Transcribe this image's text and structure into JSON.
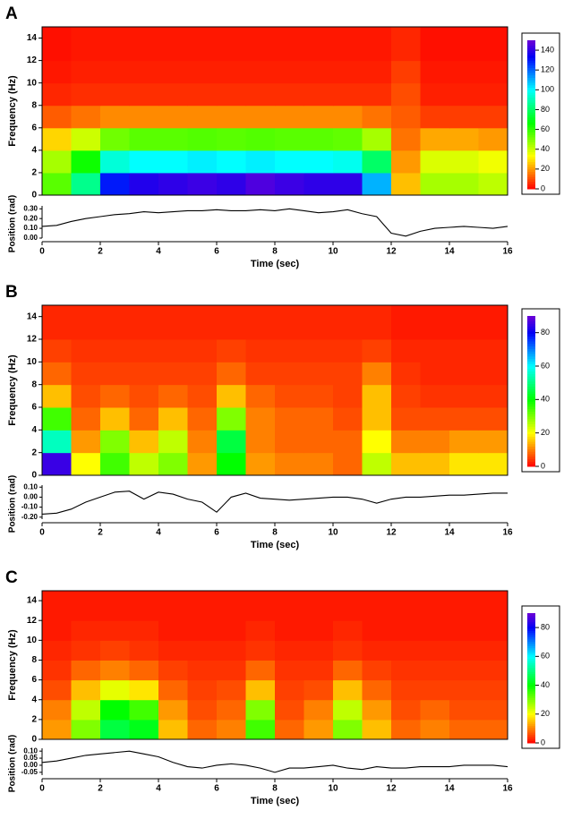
{
  "chart_data": [
    {
      "type": "heatmap",
      "label": "A",
      "ylabel": "Frequency (Hz)",
      "xbins": [
        0,
        1,
        2,
        3,
        4,
        5,
        6,
        7,
        8,
        9,
        10,
        11,
        12,
        13,
        14,
        15,
        16
      ],
      "ybins": [
        0,
        2,
        4,
        6,
        8,
        10,
        12,
        15
      ],
      "z": [
        [
          55,
          85,
          130,
          138,
          140,
          142,
          140,
          145,
          142,
          140,
          140,
          110,
          25,
          45,
          45,
          42
        ],
        [
          45,
          65,
          95,
          100,
          100,
          102,
          100,
          102,
          100,
          100,
          98,
          80,
          20,
          38,
          38,
          35
        ],
        [
          28,
          40,
          52,
          55,
          55,
          56,
          55,
          56,
          55,
          55,
          54,
          45,
          15,
          22,
          22,
          20
        ],
        [
          12,
          15,
          18,
          18,
          18,
          18,
          18,
          18,
          18,
          18,
          18,
          15,
          12,
          8,
          8,
          8
        ],
        [
          5,
          6,
          6,
          6,
          6,
          6,
          6,
          6,
          6,
          6,
          6,
          6,
          10,
          4,
          4,
          4
        ],
        [
          3,
          4,
          4,
          4,
          4,
          4,
          4,
          4,
          4,
          4,
          4,
          4,
          8,
          3,
          3,
          3
        ],
        [
          2,
          3,
          3,
          3,
          3,
          3,
          3,
          3,
          3,
          3,
          3,
          3,
          5,
          2,
          2,
          2
        ]
      ],
      "ylim": [
        0,
        15
      ],
      "yticks": [
        0,
        2,
        4,
        6,
        8,
        10,
        12,
        14
      ],
      "clim": [
        0,
        150
      ],
      "cticks": [
        0,
        20,
        40,
        60,
        80,
        100,
        120,
        140
      ]
    },
    {
      "type": "line",
      "ylabel": "Position (rad)",
      "xlabel": "Time (sec)",
      "color": "#000000",
      "x": [
        0,
        0.5,
        1,
        1.5,
        2,
        2.5,
        3,
        3.5,
        4,
        4.5,
        5,
        5.5,
        6,
        6.5,
        7,
        7.5,
        8,
        8.5,
        9,
        9.5,
        10,
        10.5,
        11,
        11.5,
        12,
        12.5,
        13,
        13.5,
        14,
        14.5,
        15,
        15.5,
        16
      ],
      "values": [
        0.12,
        0.13,
        0.17,
        0.2,
        0.22,
        0.24,
        0.25,
        0.27,
        0.26,
        0.27,
        0.28,
        0.28,
        0.29,
        0.28,
        0.28,
        0.29,
        0.28,
        0.3,
        0.28,
        0.26,
        0.27,
        0.29,
        0.25,
        0.22,
        0.05,
        0.02,
        0.07,
        0.1,
        0.11,
        0.12,
        0.11,
        0.1,
        0.12
      ],
      "xlim": [
        0,
        16
      ],
      "xticks": [
        0,
        2,
        4,
        6,
        8,
        10,
        12,
        14,
        16
      ],
      "ylim": [
        0,
        0.33
      ],
      "yticks": [
        {
          "value": 0,
          "label": "0.00"
        },
        {
          "value": 0.1,
          "label": "0.10"
        },
        {
          "value": 0.2,
          "label": "0.20"
        },
        {
          "value": 0.3,
          "label": "0.30"
        }
      ]
    },
    {
      "type": "heatmap",
      "label": "B",
      "ylabel": "Frequency (Hz)",
      "xbins": [
        0,
        1,
        2,
        3,
        4,
        5,
        6,
        7,
        8,
        9,
        10,
        11,
        12,
        13,
        14,
        15,
        16
      ],
      "ybins": [
        0,
        2,
        4,
        6,
        8,
        10,
        12,
        15
      ],
      "z": [
        [
          85,
          20,
          35,
          25,
          30,
          12,
          40,
          12,
          10,
          10,
          8,
          25,
          15,
          15,
          18,
          18
        ],
        [
          55,
          12,
          30,
          15,
          25,
          10,
          45,
          10,
          8,
          8,
          8,
          20,
          10,
          10,
          12,
          12
        ],
        [
          35,
          8,
          15,
          8,
          15,
          8,
          30,
          10,
          8,
          8,
          6,
          15,
          6,
          6,
          6,
          6
        ],
        [
          15,
          6,
          8,
          6,
          8,
          6,
          15,
          8,
          6,
          6,
          5,
          15,
          5,
          4,
          4,
          4
        ],
        [
          8,
          5,
          5,
          5,
          5,
          5,
          8,
          5,
          5,
          5,
          5,
          10,
          4,
          3,
          3,
          3
        ],
        [
          5,
          4,
          4,
          4,
          4,
          4,
          5,
          4,
          4,
          4,
          4,
          5,
          3,
          3,
          3,
          3
        ],
        [
          3,
          3,
          3,
          3,
          3,
          3,
          3,
          3,
          3,
          3,
          3,
          3,
          2,
          2,
          2,
          2
        ]
      ],
      "ylim": [
        0,
        15
      ],
      "yticks": [
        0,
        2,
        4,
        6,
        8,
        10,
        12,
        14
      ],
      "clim": [
        0,
        90
      ],
      "cticks": [
        0,
        20,
        40,
        60,
        80
      ]
    },
    {
      "type": "line",
      "ylabel": "Position (rad)",
      "xlabel": "Time (sec)",
      "color": "#000000",
      "x": [
        0,
        0.5,
        1,
        1.5,
        2,
        2.5,
        3,
        3.5,
        4,
        4.5,
        5,
        5.5,
        6,
        6.5,
        7,
        7.5,
        8,
        8.5,
        9,
        9.5,
        10,
        10.5,
        11,
        11.5,
        12,
        12.5,
        13,
        13.5,
        14,
        14.5,
        15,
        15.5,
        16
      ],
      "values": [
        -0.17,
        -0.16,
        -0.12,
        -0.05,
        0,
        0.05,
        0.06,
        -0.02,
        0.05,
        0.03,
        -0.02,
        -0.05,
        -0.15,
        0,
        0.04,
        -0.01,
        -0.02,
        -0.03,
        -0.02,
        -0.01,
        0,
        0,
        -0.02,
        -0.06,
        -0.02,
        0,
        0,
        0.01,
        0.02,
        0.02,
        0.03,
        0.04,
        0.04
      ],
      "xlim": [
        0,
        16
      ],
      "xticks": [
        0,
        2,
        4,
        6,
        8,
        10,
        12,
        14,
        16
      ],
      "ylim": [
        -0.22,
        0.12
      ],
      "yticks": [
        {
          "value": -0.2,
          "label": "-0.20"
        },
        {
          "value": -0.1,
          "label": "-0.10"
        },
        {
          "value": 0,
          "label": "0.00"
        },
        {
          "value": 0.1,
          "label": "0.10"
        }
      ]
    },
    {
      "type": "heatmap",
      "label": "C",
      "ylabel": "Frequency (Hz)",
      "xbins": [
        0,
        1,
        2,
        3,
        4,
        5,
        6,
        7,
        8,
        9,
        10,
        11,
        12,
        13,
        14,
        15,
        16
      ],
      "ybins": [
        0,
        2,
        4,
        6,
        8,
        10,
        12,
        15
      ],
      "z": [
        [
          12,
          30,
          45,
          42,
          15,
          8,
          10,
          35,
          8,
          12,
          30,
          15,
          8,
          10,
          8,
          8
        ],
        [
          10,
          25,
          40,
          35,
          12,
          6,
          8,
          30,
          6,
          10,
          25,
          12,
          6,
          8,
          6,
          6
        ],
        [
          6,
          15,
          22,
          18,
          8,
          5,
          6,
          15,
          5,
          6,
          15,
          8,
          5,
          5,
          5,
          5
        ],
        [
          4,
          8,
          10,
          8,
          5,
          4,
          4,
          8,
          4,
          4,
          8,
          5,
          4,
          4,
          4,
          4
        ],
        [
          3,
          4,
          5,
          4,
          3,
          3,
          3,
          4,
          3,
          3,
          4,
          3,
          3,
          3,
          3,
          3
        ],
        [
          2,
          3,
          3,
          3,
          2,
          2,
          2,
          3,
          2,
          2,
          3,
          2,
          2,
          2,
          2,
          2
        ],
        [
          2,
          2,
          2,
          2,
          2,
          2,
          2,
          2,
          2,
          2,
          2,
          2,
          2,
          2,
          2,
          2
        ]
      ],
      "ylim": [
        0,
        15
      ],
      "yticks": [
        0,
        2,
        4,
        6,
        8,
        10,
        12,
        14
      ],
      "clim": [
        0,
        90
      ],
      "cticks": [
        0,
        20,
        40,
        60,
        80
      ]
    },
    {
      "type": "line",
      "ylabel": "Position (rad)",
      "xlabel": "Time (sec)",
      "color": "#000000",
      "x": [
        0,
        0.5,
        1,
        1.5,
        2,
        2.5,
        3,
        3.5,
        4,
        4.5,
        5,
        5.5,
        6,
        6.5,
        7,
        7.5,
        8,
        8.5,
        9,
        9.5,
        10,
        10.5,
        11,
        11.5,
        12,
        12.5,
        13,
        13.5,
        14,
        14.5,
        15,
        15.5,
        16
      ],
      "values": [
        0.02,
        0.03,
        0.05,
        0.07,
        0.08,
        0.09,
        0.1,
        0.08,
        0.06,
        0.02,
        -0.01,
        -0.02,
        0,
        0.01,
        0,
        -0.02,
        -0.05,
        -0.02,
        -0.02,
        -0.01,
        0,
        -0.02,
        -0.03,
        -0.01,
        -0.02,
        -0.02,
        -0.01,
        -0.01,
        -0.01,
        0,
        0,
        0,
        -0.01
      ],
      "xlim": [
        0,
        16
      ],
      "xticks": [
        0,
        2,
        4,
        6,
        8,
        10,
        12,
        14,
        16
      ],
      "ylim": [
        -0.07,
        0.12
      ],
      "yticks": [
        {
          "value": -0.05,
          "label": "-0.05"
        },
        {
          "value": 0,
          "label": "0.00"
        },
        {
          "value": 0.05,
          "label": "0.05"
        },
        {
          "value": 0.1,
          "label": "0.10"
        }
      ]
    }
  ]
}
